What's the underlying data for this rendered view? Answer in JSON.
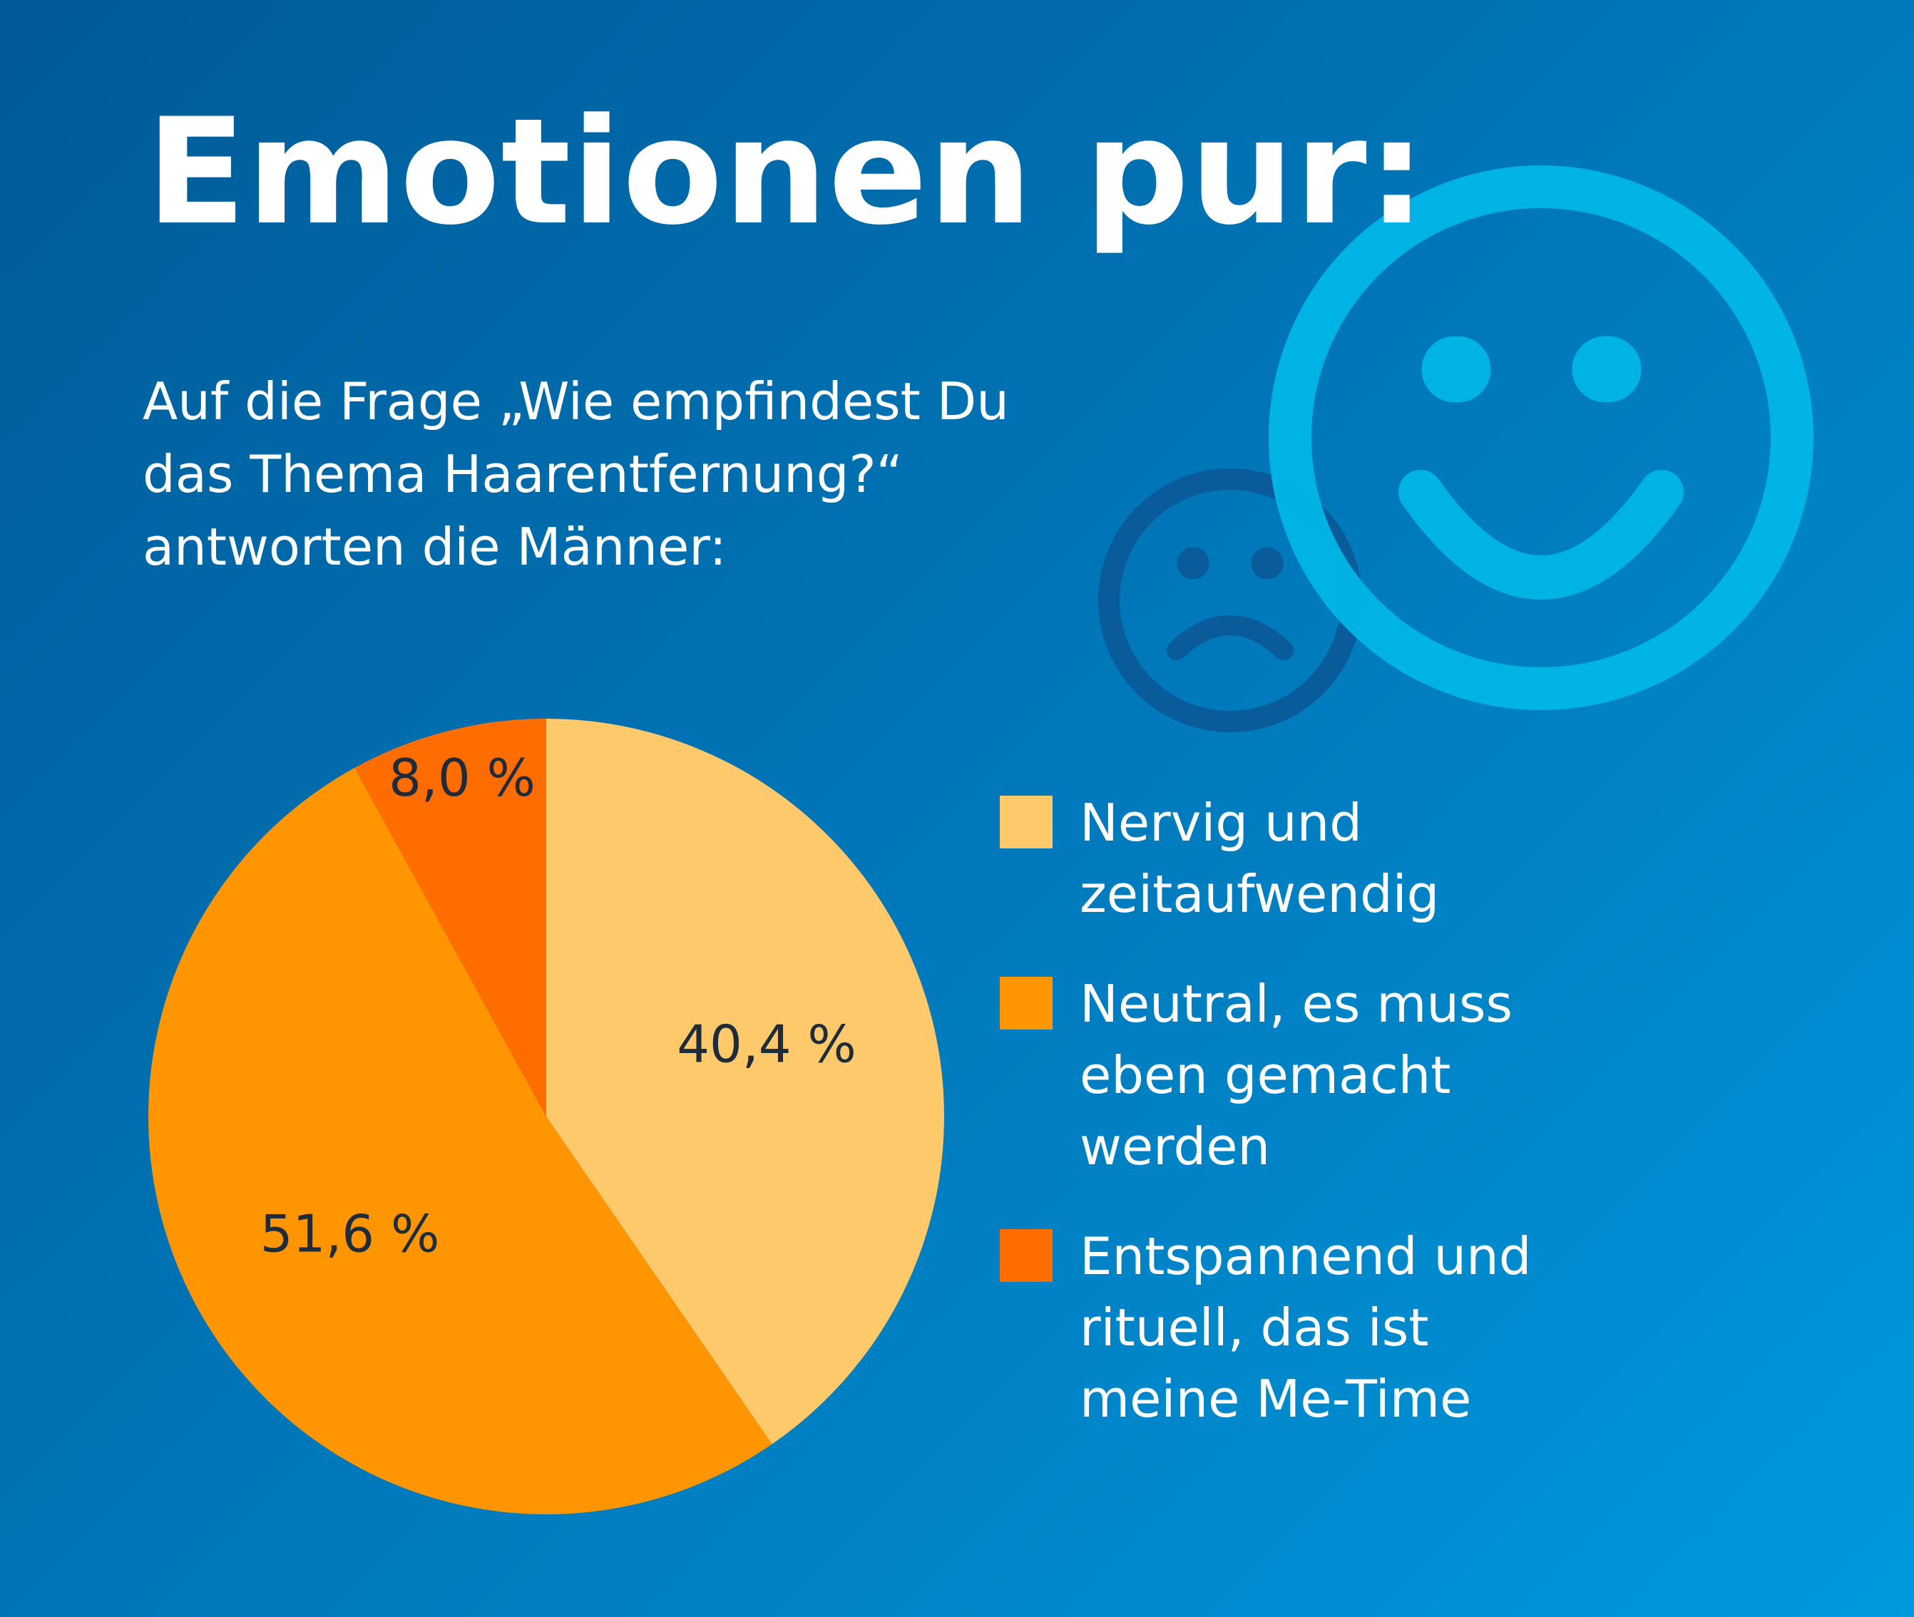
{
  "title": "Emotionen pur:",
  "subtitle_lines": [
    "Auf die Frage „Wie empfindest Du",
    "das Thema Haarentfernung?“",
    "antworten die Männer:"
  ],
  "decorations": {
    "happy_face_icon": "smiley-icon",
    "sad_face_icon": "frowny-face-icon",
    "happy_face_color": "#00b8ea",
    "sad_face_color": "#0a5996"
  },
  "colors": {
    "background_start": "#005a97",
    "background_end": "#0099dd",
    "label_text": "#1d2b3a"
  },
  "chart_data": {
    "type": "pie",
    "title": "",
    "start_angle_deg": 0,
    "direction": "clockwise",
    "slices": [
      {
        "label": "Nervig und zeitaufwendig",
        "value": 40.4,
        "display": "40,4 %",
        "color": "#fdc96a"
      },
      {
        "label": "Neutral, es muss eben gemacht werden",
        "value": 51.6,
        "display": "51,6 %",
        "color": "#ff9500"
      },
      {
        "label": "Entspannend und rituell, das ist meine Me-Time",
        "value": 8.0,
        "display": "8,0 %",
        "color": "#ff6c00"
      }
    ],
    "legend": {
      "position": "right",
      "items": [
        {
          "lines": [
            "Nervig und",
            "zeitaufwendig"
          ],
          "color": "#fdc96a"
        },
        {
          "lines": [
            "Neutral, es muss",
            "eben gemacht",
            "werden"
          ],
          "color": "#ff9500"
        },
        {
          "lines": [
            "Entspannend und",
            "rituell, das ist",
            "meine Me-Time"
          ],
          "color": "#ff6c00"
        }
      ]
    }
  }
}
